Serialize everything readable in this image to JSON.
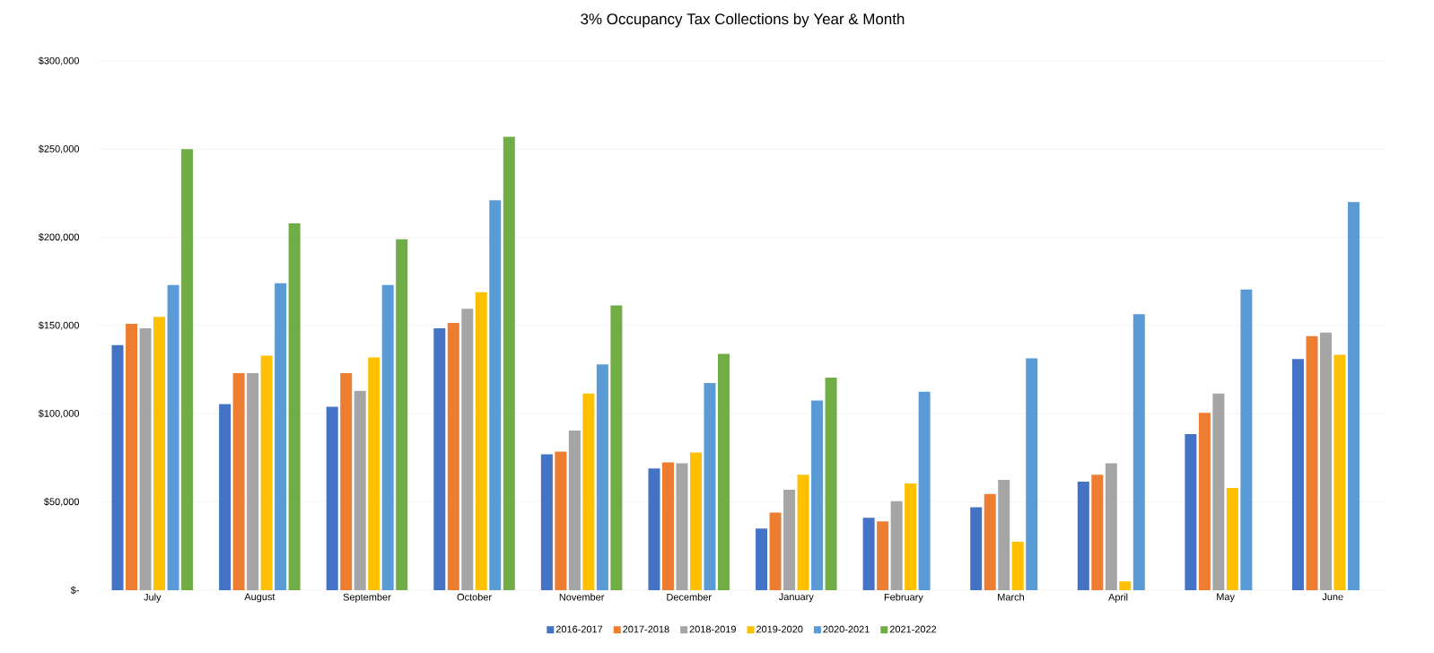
{
  "chart_data": {
    "type": "bar",
    "title": "3% Occupancy Tax Collections  by Year & Month",
    "categories": [
      "July",
      "August",
      "September",
      "October",
      "November",
      "December",
      "January",
      "February",
      "March",
      "April",
      "May",
      "June"
    ],
    "series": [
      {
        "name": "2016-2017",
        "color": "#4472c4",
        "values": [
          139000,
          105500,
          104000,
          148500,
          77000,
          69000,
          35000,
          41000,
          47000,
          61500,
          88500,
          131000
        ]
      },
      {
        "name": "2017-2018",
        "color": "#ed7d31",
        "values": [
          151000,
          123000,
          123000,
          151500,
          78500,
          72500,
          44000,
          39000,
          54500,
          65500,
          100500,
          144000
        ]
      },
      {
        "name": "2018-2019",
        "color": "#a5a5a5",
        "values": [
          148500,
          123000,
          113000,
          159500,
          90500,
          72000,
          57000,
          50500,
          62500,
          72000,
          111500,
          146000
        ]
      },
      {
        "name": "2019-2020",
        "color": "#ffc000",
        "values": [
          155000,
          133000,
          132000,
          169000,
          111500,
          78000,
          65500,
          60500,
          27500,
          5000,
          58000,
          133500
        ]
      },
      {
        "name": "2020-2021",
        "color": "#5b9bd5",
        "values": [
          173000,
          174000,
          173000,
          221000,
          128000,
          117500,
          107500,
          112500,
          131500,
          156500,
          170500,
          220000
        ]
      },
      {
        "name": "2021-2022",
        "color": "#70ad47",
        "values": [
          250000,
          208000,
          199000,
          257000,
          161500,
          134000,
          120500,
          null,
          null,
          null,
          null,
          null
        ]
      }
    ],
    "ylim": [
      0,
      300000
    ],
    "yticks": [
      {
        "value": 0,
        "label": "$-"
      },
      {
        "value": 50000,
        "label": "$50,000"
      },
      {
        "value": 100000,
        "label": "$100,000"
      },
      {
        "value": 150000,
        "label": "$150,000"
      },
      {
        "value": 200000,
        "label": "$200,000"
      },
      {
        "value": 250000,
        "label": "$250,000"
      },
      {
        "value": 300000,
        "label": "$300,000"
      }
    ],
    "grid": "y",
    "legend": "bottom"
  }
}
